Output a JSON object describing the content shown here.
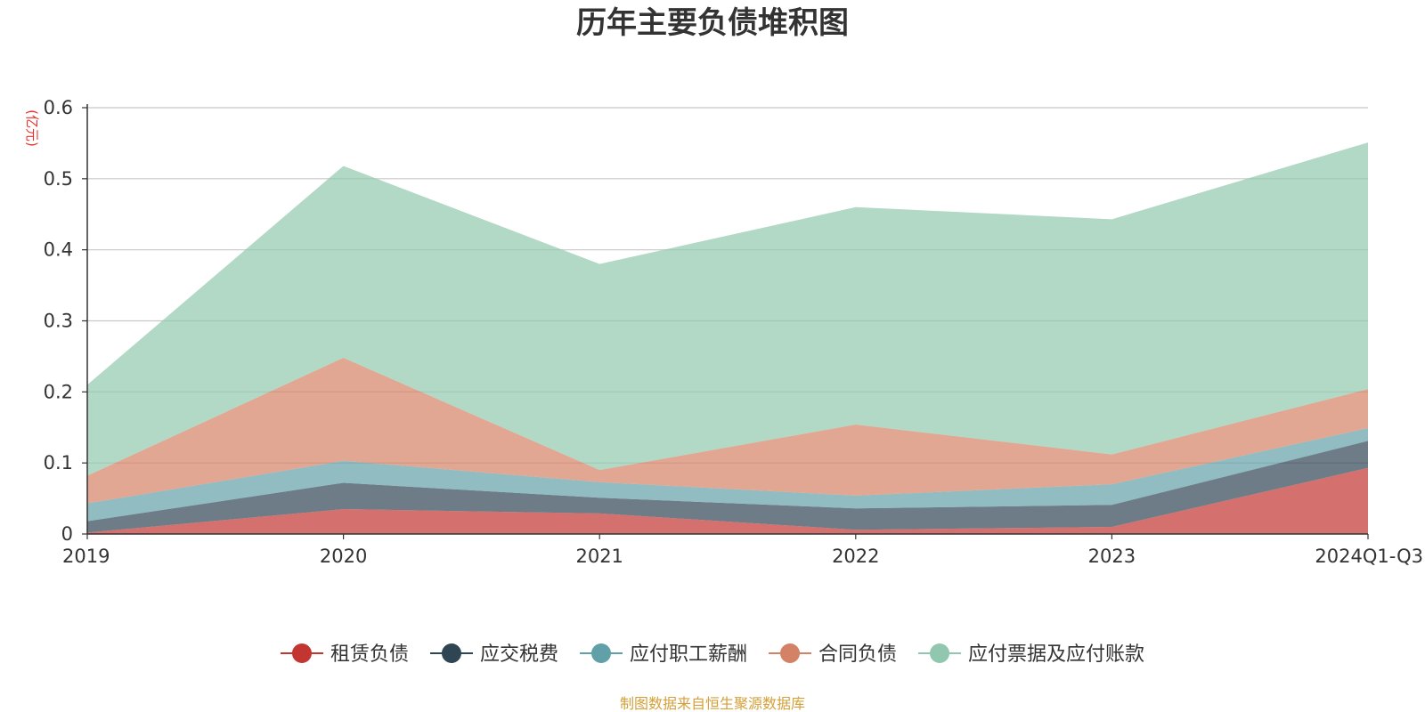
{
  "chart_data": {
    "type": "area",
    "stacked": true,
    "title": "历年主要负债堆积图",
    "unit": "(亿元)",
    "categories": [
      "2019",
      "2020",
      "2021",
      "2022",
      "2023",
      "2024Q1-Q3"
    ],
    "ylim": [
      0,
      0.6
    ],
    "yticks": [
      0,
      0.1,
      0.2,
      0.3,
      0.4,
      0.5,
      0.6
    ],
    "grid": true,
    "legend_position": "bottom",
    "series": [
      {
        "name": "租赁负债",
        "values": [
          0.002,
          0.035,
          0.029,
          0.006,
          0.01,
          0.093
        ],
        "color": "#c23531"
      },
      {
        "name": "应交税费",
        "values": [
          0.016,
          0.037,
          0.022,
          0.03,
          0.031,
          0.038
        ],
        "color": "#2f4554"
      },
      {
        "name": "应付职工薪酬",
        "values": [
          0.025,
          0.031,
          0.022,
          0.018,
          0.029,
          0.018
        ],
        "color": "#61a0a8"
      },
      {
        "name": "合同负债",
        "values": [
          0.039,
          0.145,
          0.017,
          0.1,
          0.042,
          0.055
        ],
        "color": "#d48265"
      },
      {
        "name": "应付票据及应付账款",
        "values": [
          0.128,
          0.27,
          0.29,
          0.306,
          0.331,
          0.347
        ],
        "color": "#91c7ae"
      }
    ]
  },
  "source_note": "制图数据来自恒生聚源数据库",
  "colors": {
    "unit": "#e8312b",
    "source": "#d4a03a",
    "grid": "#c8c8c8",
    "axis": "#333333"
  }
}
